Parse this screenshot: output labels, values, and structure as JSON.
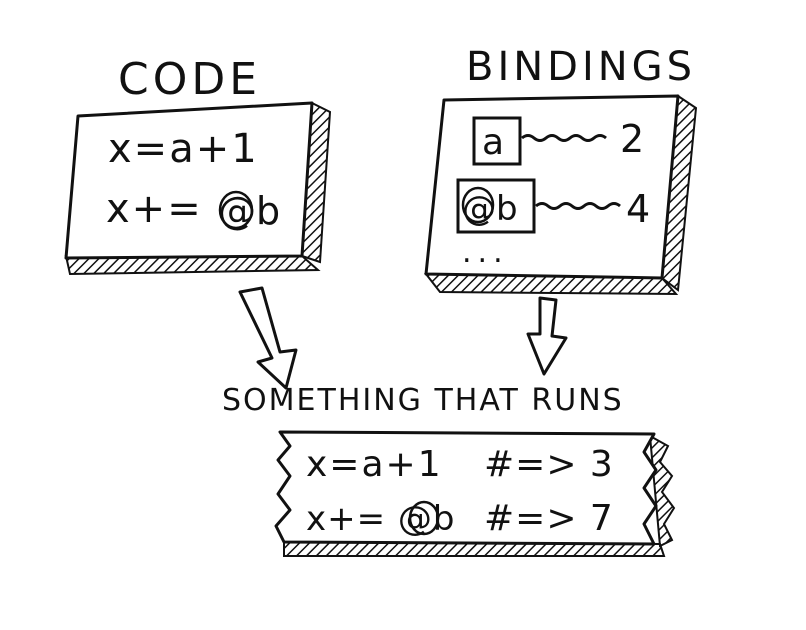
{
  "title_code": "CODE",
  "title_bindings": "BINDINGS",
  "title_result": "SOMETHING THAT RUNS",
  "code_lines": [
    "x=a+1",
    "x+=",
    "@b"
  ],
  "bindings": {
    "names": [
      "a",
      "@b"
    ],
    "values": [
      "2",
      "4"
    ],
    "more": "..."
  },
  "result_lines": [
    {
      "expr": "x=a+1",
      "output": "#=> 3"
    },
    {
      "expr": "x+= @b",
      "output": "#=> 7"
    }
  ],
  "colors": {
    "ink": "#111111",
    "paper": "#ffffff"
  }
}
